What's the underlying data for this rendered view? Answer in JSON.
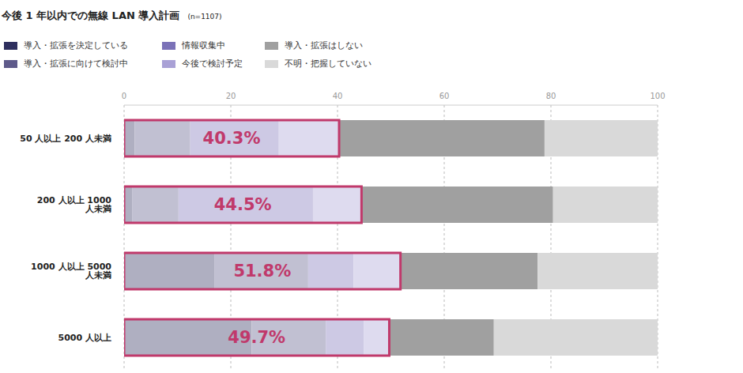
{
  "chart_data": {
    "type": "bar",
    "title": "今後 1 年以内での無線 LAN 導入計画",
    "subtitle": "(n=1107)",
    "orientation": "horizontal",
    "stacked": true,
    "grid": true,
    "legend": "top-left",
    "categories": [
      "50 人以上 200 人未満",
      "200 人以上 1000 人未満",
      "1000 人以上 5000 人未満",
      "5000 人以上"
    ],
    "series": [
      {
        "name": "導入・拡張を決定している",
        "color": "#2e2f5e",
        "values": [
          2.0,
          1.5,
          16.9,
          23.9
        ]
      },
      {
        "name": "導入・拡張に向けて検討中",
        "color": "#5e5a8a",
        "values": [
          10.4,
          8.7,
          17.6,
          13.9
        ]
      },
      {
        "name": "情報収集中",
        "color": "#7b72b8",
        "values": [
          16.6,
          25.2,
          8.5,
          7.1
        ]
      },
      {
        "name": "今後で検討予定",
        "color": "#a9a1d6",
        "values": [
          11.3,
          9.1,
          8.8,
          4.8
        ]
      },
      {
        "name": "導入・拡張はしない",
        "color": "#a0a0a0",
        "values": [
          38.5,
          35.9,
          25.7,
          19.6
        ]
      },
      {
        "name": "不明・把握していない",
        "color": "#d9d9d9",
        "values": [
          21.2,
          19.6,
          22.5,
          30.7
        ]
      }
    ],
    "highlight_totals": {
      "color": "#c0396b",
      "values": [
        40.3,
        44.5,
        51.8,
        49.7
      ],
      "value_labels": [
        "40.3%",
        "44.5%",
        "51.8%",
        "49.7%"
      ]
    },
    "xlim": [
      0,
      100
    ],
    "xticks": [
      0,
      20,
      40,
      60,
      80,
      100
    ]
  }
}
